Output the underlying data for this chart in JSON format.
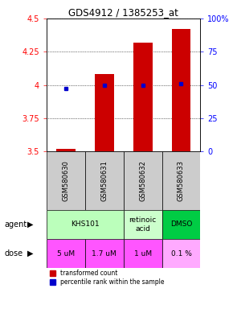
{
  "title": "GDS4912 / 1385253_at",
  "samples": [
    "GSM580630",
    "GSM580631",
    "GSM580632",
    "GSM580633"
  ],
  "bar_values": [
    3.52,
    4.08,
    4.32,
    4.42
  ],
  "percentile_values": [
    3.975,
    4.0,
    4.0,
    4.01
  ],
  "ylim": [
    3.5,
    4.5
  ],
  "yticks_left": [
    3.5,
    3.75,
    4.0,
    4.25,
    4.5
  ],
  "yticks_right": [
    0,
    25,
    50,
    75,
    100
  ],
  "ytick_labels_left": [
    "3.5",
    "3.75",
    "4",
    "4.25",
    "4.5"
  ],
  "ytick_labels_right": [
    "0",
    "25",
    "50",
    "75",
    "100%"
  ],
  "bar_color": "#cc0000",
  "dot_color": "#0000cc",
  "agent_spans": [
    {
      "start": 0,
      "end": 1,
      "label": "KHS101",
      "color": "#bbffbb"
    },
    {
      "start": 2,
      "end": 2,
      "label": "retinoic\nacid",
      "color": "#ccffcc"
    },
    {
      "start": 3,
      "end": 3,
      "label": "DMSO",
      "color": "#00cc44"
    }
  ],
  "dose_row": [
    "5 uM",
    "1.7 uM",
    "1 uM",
    "0.1 %"
  ],
  "dose_colors": [
    "#ff55ff",
    "#ff55ff",
    "#ff55ff",
    "#ffaaff"
  ],
  "sample_bg": "#cccccc",
  "legend_red": "transformed count",
  "legend_blue": "percentile rank within the sample",
  "bar_width": 0.5
}
